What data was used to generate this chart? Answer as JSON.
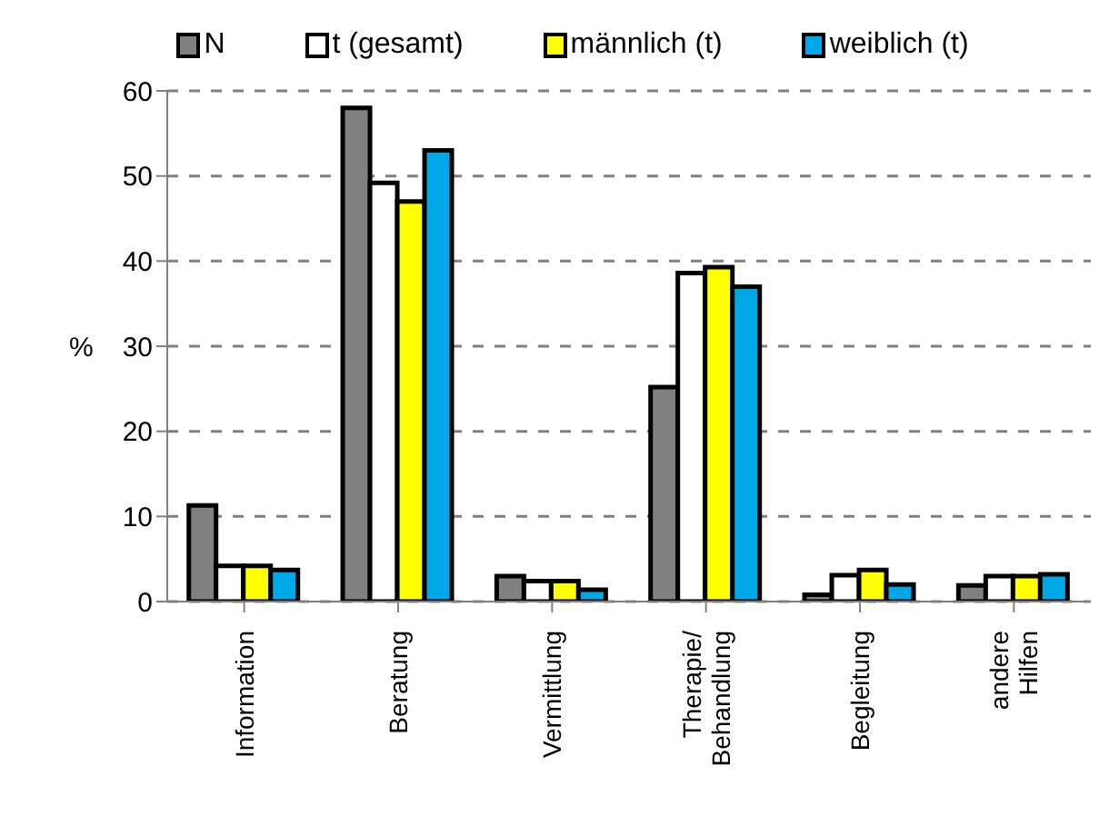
{
  "chart_data": {
    "type": "bar",
    "ylabel": "%",
    "categories": [
      "Information",
      "Beratung",
      "Vermittlung",
      "Therapie/ Behandlung",
      "Begleitung",
      "andere Hilfen"
    ],
    "series": [
      {
        "name": "N",
        "color": "#808080",
        "values": [
          11.3,
          58,
          3,
          25.2,
          0.8,
          1.9
        ]
      },
      {
        "name": "t (gesamt)",
        "color": "#ffffff",
        "values": [
          4.2,
          49.2,
          2.4,
          38.6,
          3.1,
          3
        ]
      },
      {
        "name": "männlich (t)",
        "color": "#ffff00",
        "values": [
          4.2,
          47,
          2.4,
          39.3,
          3.7,
          3
        ]
      },
      {
        "name": "weiblich (t)",
        "color": "#00a8e8",
        "values": [
          3.7,
          53,
          1.4,
          37,
          2,
          3.2
        ]
      }
    ],
    "ylim": [
      0,
      60
    ],
    "yticks": [
      0,
      10,
      20,
      30,
      40,
      50,
      60
    ],
    "grid": "y",
    "legend": "top"
  }
}
